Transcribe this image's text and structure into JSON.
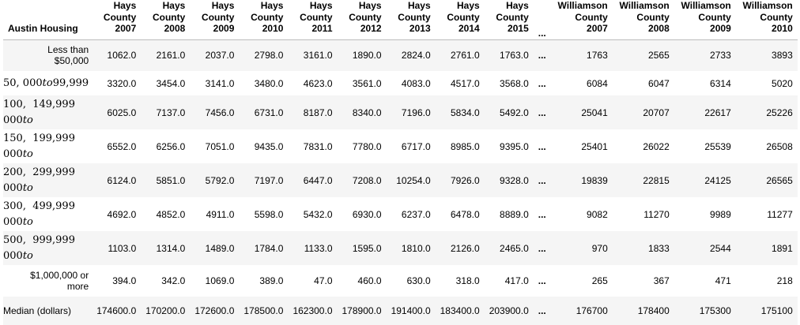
{
  "table": {
    "index_header": "Austin Housing",
    "ellipsis": "...",
    "columns": [
      {
        "line1": "Hays",
        "line2": "County",
        "line3": "2007"
      },
      {
        "line1": "Hays",
        "line2": "County",
        "line3": "2008"
      },
      {
        "line1": "Hays",
        "line2": "County",
        "line3": "2009"
      },
      {
        "line1": "Hays",
        "line2": "County",
        "line3": "2010"
      },
      {
        "line1": "Hays",
        "line2": "County",
        "line3": "2011"
      },
      {
        "line1": "Hays",
        "line2": "County",
        "line3": "2012"
      },
      {
        "line1": "Hays",
        "line2": "County",
        "line3": "2013"
      },
      {
        "line1": "Hays",
        "line2": "County",
        "line3": "2014"
      },
      {
        "line1": "Hays",
        "line2": "County",
        "line3": "2015"
      },
      {
        "line1": "Williamson",
        "line2": "County",
        "line3": "2007"
      },
      {
        "line1": "Williamson",
        "line2": "County",
        "line3": "2008"
      },
      {
        "line1": "Williamson",
        "line2": "County",
        "line3": "2009"
      },
      {
        "line1": "Williamson",
        "line2": "County",
        "line3": "2010"
      }
    ],
    "rows": [
      {
        "label_line1": "Less than",
        "label_line2": "$50,000",
        "values": [
          "1062.0",
          "2161.0",
          "2037.0",
          "2798.0",
          "3161.0",
          "1890.0",
          "2824.0",
          "2761.0",
          "1763.0",
          "1763",
          "2565",
          "2733",
          "3893"
        ]
      },
      {
        "label_num": "50, 000",
        "label_it": "to",
        "label_tail": "99,999",
        "values": [
          "3320.0",
          "3454.0",
          "3141.0",
          "3480.0",
          "4623.0",
          "3561.0",
          "4083.0",
          "4517.0",
          "3568.0",
          "6084",
          "6047",
          "6314",
          "5020"
        ]
      },
      {
        "label_top": "100,  149,999",
        "label_bottom_num": "000",
        "label_bottom_it": "to",
        "values": [
          "6025.0",
          "7137.0",
          "7456.0",
          "6731.0",
          "8187.0",
          "8340.0",
          "7196.0",
          "5834.0",
          "5492.0",
          "25041",
          "20707",
          "22617",
          "25226"
        ]
      },
      {
        "label_top": "150,  199,999",
        "label_bottom_num": "000",
        "label_bottom_it": "to",
        "values": [
          "6552.0",
          "6256.0",
          "7051.0",
          "9435.0",
          "7831.0",
          "7780.0",
          "6717.0",
          "8985.0",
          "9395.0",
          "25401",
          "26022",
          "25539",
          "26508"
        ]
      },
      {
        "label_top": "200,  299,999",
        "label_bottom_num": "000",
        "label_bottom_it": "to",
        "values": [
          "6124.0",
          "5851.0",
          "5792.0",
          "7197.0",
          "6447.0",
          "7208.0",
          "10254.0",
          "7926.0",
          "9328.0",
          "19839",
          "22815",
          "24125",
          "26565"
        ]
      },
      {
        "label_top": "300,  499,999",
        "label_bottom_num": "000",
        "label_bottom_it": "to",
        "values": [
          "4692.0",
          "4852.0",
          "4911.0",
          "5598.0",
          "5432.0",
          "6930.0",
          "6237.0",
          "6478.0",
          "8889.0",
          "9082",
          "11270",
          "9989",
          "11277"
        ]
      },
      {
        "label_top": "500,  999,999",
        "label_bottom_num": "000",
        "label_bottom_it": "to",
        "values": [
          "1103.0",
          "1314.0",
          "1489.0",
          "1784.0",
          "1133.0",
          "1595.0",
          "1810.0",
          "2126.0",
          "2465.0",
          "970",
          "1833",
          "2544",
          "1891"
        ]
      },
      {
        "label_line1": "$1,000,000 or",
        "label_line2": "more",
        "values": [
          "394.0",
          "342.0",
          "1069.0",
          "389.0",
          "47.0",
          "460.0",
          "630.0",
          "318.0",
          "417.0",
          "265",
          "367",
          "471",
          "218"
        ]
      },
      {
        "label_single": "Median (dollars)",
        "values": [
          "174600.0",
          "170200.0",
          "172600.0",
          "178500.0",
          "162300.0",
          "178900.0",
          "191400.0",
          "183400.0",
          "203900.0",
          "176700",
          "178400",
          "175300",
          "175100"
        ]
      }
    ]
  }
}
